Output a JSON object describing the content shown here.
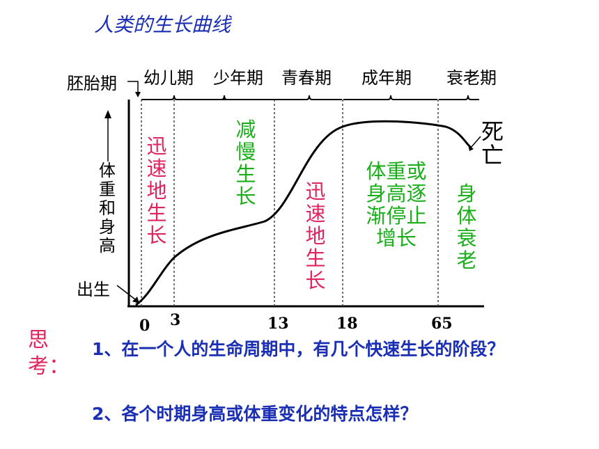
{
  "title": "人类的生长曲线",
  "stages": {
    "embryo": "胚胎期",
    "infancy": "幼儿期",
    "childhood": "少年期",
    "adolescence": "青春期",
    "adulthood": "成年期",
    "old_age": "衰老期"
  },
  "y_label": "体重和身高",
  "birth_label": "出生",
  "death_label": "死亡",
  "x_ticks": [
    "0",
    "3",
    "13",
    "18",
    "65"
  ],
  "annotations": {
    "rapid_growth_1": "迅速地生长",
    "slow_growth": "减慢生长",
    "rapid_growth_2": "迅速地生长",
    "stop_growth": "体重或身高逐渐停止增长",
    "decline": "身体衰老"
  },
  "colors": {
    "title": "#1a2fb4",
    "rapid": "#e0245e",
    "slow": "#1aaf1a",
    "question": "#1a2fb4",
    "think": "#e0245e"
  },
  "think_label": "思考：",
  "questions": [
    "1、在一个人的生命周期中，有几个快速生长的阶段？",
    "2、各个时期身高或体重变化的特点怎样？"
  ]
}
